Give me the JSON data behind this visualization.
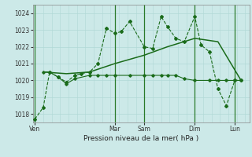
{
  "xlabel": "Pression niveau de la mer( hPa )",
  "ylim": [
    1017.5,
    1024.5
  ],
  "yticks": [
    1018,
    1019,
    1020,
    1021,
    1022,
    1023,
    1024
  ],
  "bg_color": "#cce9e8",
  "grid_color": "#b0d8d6",
  "line_color": "#1a6b1a",
  "day_labels": [
    "Ven",
    "Mar",
    "Sam",
    "Dim",
    "Lun"
  ],
  "day_positions": [
    0.0,
    0.38,
    0.52,
    0.76,
    0.95
  ],
  "xlim": [
    -0.01,
    1.02
  ],
  "series1_x": [
    0.0,
    0.04,
    0.07,
    0.11,
    0.15,
    0.19,
    0.22,
    0.26,
    0.3,
    0.34,
    0.38,
    0.41,
    0.45,
    0.52,
    0.56,
    0.6,
    0.63,
    0.67,
    0.71,
    0.76,
    0.79,
    0.83,
    0.87,
    0.91,
    0.95,
    0.98
  ],
  "series1_y": [
    1017.7,
    1018.4,
    1020.5,
    1020.2,
    1019.9,
    1020.3,
    1020.4,
    1020.5,
    1021.0,
    1023.1,
    1022.8,
    1022.9,
    1023.5,
    1022.0,
    1021.9,
    1023.8,
    1023.2,
    1022.5,
    1022.3,
    1023.8,
    1022.1,
    1021.7,
    1019.5,
    1018.5,
    1020.0,
    1020.0
  ],
  "series2_x": [
    0.04,
    0.07,
    0.11,
    0.15,
    0.19,
    0.26,
    0.3,
    0.34,
    0.38,
    0.45,
    0.52,
    0.56,
    0.6,
    0.63,
    0.67,
    0.71,
    0.76,
    0.83,
    0.87,
    0.91,
    0.95,
    0.98
  ],
  "series2_y": [
    1020.5,
    1020.5,
    1020.2,
    1019.8,
    1020.1,
    1020.3,
    1020.3,
    1020.3,
    1020.3,
    1020.3,
    1020.3,
    1020.3,
    1020.3,
    1020.3,
    1020.3,
    1020.1,
    1020.0,
    1020.0,
    1020.0,
    1020.0,
    1020.0,
    1020.0
  ],
  "series3_x": [
    0.04,
    0.15,
    0.26,
    0.38,
    0.52,
    0.63,
    0.76,
    0.87,
    0.98
  ],
  "series3_y": [
    1020.5,
    1020.4,
    1020.5,
    1021.0,
    1021.5,
    1022.0,
    1022.5,
    1022.3,
    1020.0
  ]
}
